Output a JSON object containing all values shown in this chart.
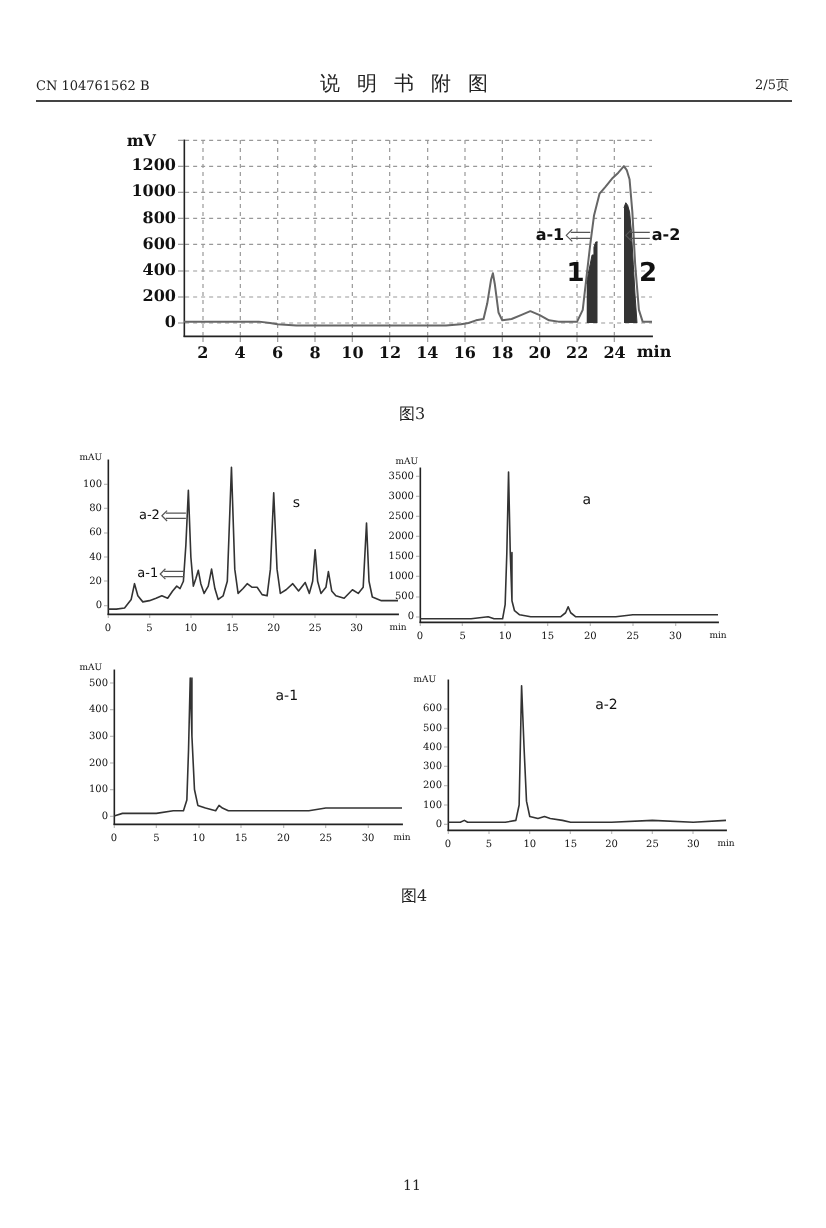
{
  "chart_data": [
    {
      "type": "line",
      "annotations": [
        "CN 104761562 B",
        "说明书附图",
        "2/5页",
        {
          "text": "a-1",
          "x": 22.7,
          "y": 670
        },
        {
          "text": "a-2",
          "x": 24.6,
          "y": 670
        },
        "图3"
      ],
      "xlabel": "min",
      "ylabel": "mV",
      "xlim": [
        1,
        26
      ],
      "xticks": [
        2,
        4,
        6,
        8,
        10,
        12,
        14,
        16,
        18,
        20,
        22,
        24
      ],
      "ylim": [
        -100,
        1400
      ],
      "yticks": [
        0,
        200,
        400,
        600,
        800,
        1000,
        1200,
        {
          "value": 1400,
          "label": null
        }
      ],
      "grid": true,
      "series": [
        {
          "color": "#666666",
          "x": [
            1,
            2,
            3,
            4,
            5,
            5.6,
            6,
            7,
            8,
            9,
            10,
            11,
            12,
            13,
            14,
            15,
            15.8,
            16.2,
            16.6,
            17.0,
            17.2,
            17.4,
            17.5,
            17.6,
            17.8,
            18.0,
            18.5,
            19.0,
            19.5,
            20.0,
            20.5,
            21.0,
            21.6,
            22.0,
            22.3,
            22.5,
            22.7,
            22.9,
            23.2,
            23.5,
            23.9,
            24.2,
            24.5,
            24.65,
            24.8,
            24.95,
            25.1,
            25.3,
            25.5,
            26
          ],
          "values": [
            10,
            10,
            10,
            10,
            10,
            0,
            -10,
            -20,
            -20,
            -20,
            -20,
            -20,
            -20,
            -20,
            -20,
            -20,
            -10,
            0,
            20,
            30,
            150,
            330,
            380,
            300,
            80,
            20,
            30,
            60,
            90,
            60,
            20,
            10,
            10,
            10,
            100,
            350,
            600,
            820,
            990,
            1040,
            1110,
            1150,
            1200,
            1170,
            1100,
            850,
            450,
            100,
            10,
            10
          ]
        },
        {
          "type": "area",
          "name": "1",
          "color": "#333333",
          "x": [
            22.5,
            22.6,
            22.7,
            22.8,
            22.9,
            23.0,
            23.1
          ],
          "values": [
            300,
            380,
            450,
            520,
            580,
            620,
            620
          ]
        },
        {
          "type": "area",
          "name": "2",
          "color": "#333333",
          "x": [
            24.5,
            24.6,
            24.7,
            24.8,
            24.9,
            25.0,
            25.1,
            25.2
          ],
          "values": [
            880,
            920,
            900,
            850,
            700,
            450,
            200,
            0
          ]
        }
      ]
    },
    {
      "type": "line",
      "title": "s",
      "annotations": [
        {
          "text": "a-2",
          "x": 9.4,
          "y": 74
        },
        {
          "text": "a-1",
          "x": 9.2,
          "y": 26
        }
      ],
      "xlabel": "min",
      "ylabel": "mAU",
      "xlim": [
        0,
        35
      ],
      "xticks": [
        0,
        5,
        10,
        15,
        20,
        25,
        30
      ],
      "ylim": [
        -7,
        120
      ],
      "yticks": [
        0,
        20,
        40,
        60,
        80,
        100
      ],
      "color": "#333333",
      "x": [
        0,
        1,
        2,
        2.8,
        3.2,
        3.6,
        4.2,
        5,
        5.8,
        6.5,
        7.2,
        7.8,
        8.3,
        8.7,
        9.1,
        9.4,
        9.7,
        10.0,
        10.3,
        10.6,
        10.9,
        11.2,
        11.6,
        12.1,
        12.5,
        12.9,
        13.3,
        13.9,
        14.4,
        14.9,
        15.3,
        15.7,
        16.3,
        16.8,
        17.4,
        18,
        18.6,
        19.2,
        19.6,
        20.0,
        20.4,
        20.8,
        21.5,
        22.3,
        23,
        23.8,
        24.3,
        24.7,
        25.0,
        25.3,
        25.7,
        26.3,
        26.6,
        27,
        27.5,
        28.5,
        29.5,
        30.2,
        30.8,
        31.2,
        31.5,
        31.9,
        33,
        35
      ],
      "values": [
        -3,
        -3,
        -2,
        5,
        18,
        8,
        3,
        4,
        6,
        8,
        6,
        12,
        16,
        14,
        20,
        50,
        95,
        40,
        16,
        22,
        29,
        18,
        10,
        16,
        30,
        14,
        5,
        8,
        20,
        114,
        30,
        10,
        14,
        18,
        15,
        15,
        9,
        8,
        30,
        93,
        30,
        10,
        13,
        18,
        12,
        19,
        10,
        20,
        46,
        20,
        10,
        15,
        28,
        12,
        8,
        6,
        13,
        10,
        15,
        68,
        20,
        7,
        4,
        4
      ]
    },
    {
      "type": "line",
      "title": "a",
      "xlabel": "min",
      "ylabel": "mAU",
      "xlim": [
        0,
        35
      ],
      "xticks": [
        0,
        5,
        10,
        15,
        20,
        25,
        30
      ],
      "ylim": [
        -130,
        3700
      ],
      "yticks": [
        0,
        500,
        1000,
        1500,
        2000,
        2500,
        3000,
        3500
      ],
      "color": "#333333",
      "x": [
        0,
        3,
        6,
        8,
        8.7,
        9.3,
        9.7,
        10.0,
        10.2,
        10.4,
        10.6,
        10.8,
        11.1,
        11.7,
        13,
        15,
        16.5,
        17.1,
        17.4,
        17.7,
        18.3,
        20,
        23,
        25,
        28,
        32,
        35
      ],
      "values": [
        -50,
        -50,
        -50,
        0,
        -50,
        -50,
        -50,
        300,
        1600,
        3600,
        1600,
        400,
        150,
        50,
        0,
        0,
        0,
        100,
        250,
        100,
        0,
        0,
        0,
        50,
        50,
        50,
        50
      ]
    },
    {
      "type": "line",
      "title": "a-1",
      "xlabel": "min",
      "ylabel": "mAU",
      "xlim": [
        0,
        34
      ],
      "xticks": [
        0,
        5,
        10,
        15,
        20,
        25,
        30
      ],
      "ylim": [
        -30,
        550
      ],
      "yticks": [
        0,
        100,
        200,
        300,
        400,
        500
      ],
      "color": "#333333",
      "x": [
        0,
        1,
        3,
        5,
        7,
        8.2,
        8.6,
        8.8,
        9.0,
        9.2,
        9.5,
        9.9,
        10.8,
        12,
        12.4,
        12.8,
        13.5,
        15,
        20,
        23,
        25,
        28,
        30,
        34
      ],
      "values": [
        0,
        10,
        10,
        10,
        20,
        20,
        60,
        250,
        520,
        300,
        100,
        40,
        30,
        20,
        40,
        30,
        20,
        20,
        20,
        20,
        30,
        30,
        30,
        30
      ]
    },
    {
      "type": "line",
      "title": "a-2",
      "annotations": [
        "图4",
        "11"
      ],
      "xlabel": "min",
      "ylabel": "mAU",
      "xlim": [
        0,
        34
      ],
      "xticks": [
        0,
        5,
        10,
        15,
        20,
        25,
        30
      ],
      "ylim": [
        -30,
        750
      ],
      "yticks": [
        0,
        100,
        200,
        300,
        400,
        500,
        600
      ],
      "color": "#333333",
      "x": [
        0,
        1.5,
        2,
        2.4,
        5,
        7,
        8.3,
        8.7,
        9.0,
        9.3,
        9.6,
        10,
        11,
        11.8,
        12.5,
        14,
        15,
        20,
        25,
        30,
        34
      ],
      "values": [
        10,
        10,
        20,
        10,
        10,
        10,
        20,
        100,
        720,
        400,
        120,
        40,
        30,
        40,
        30,
        20,
        10,
        10,
        20,
        10,
        20
      ]
    }
  ]
}
